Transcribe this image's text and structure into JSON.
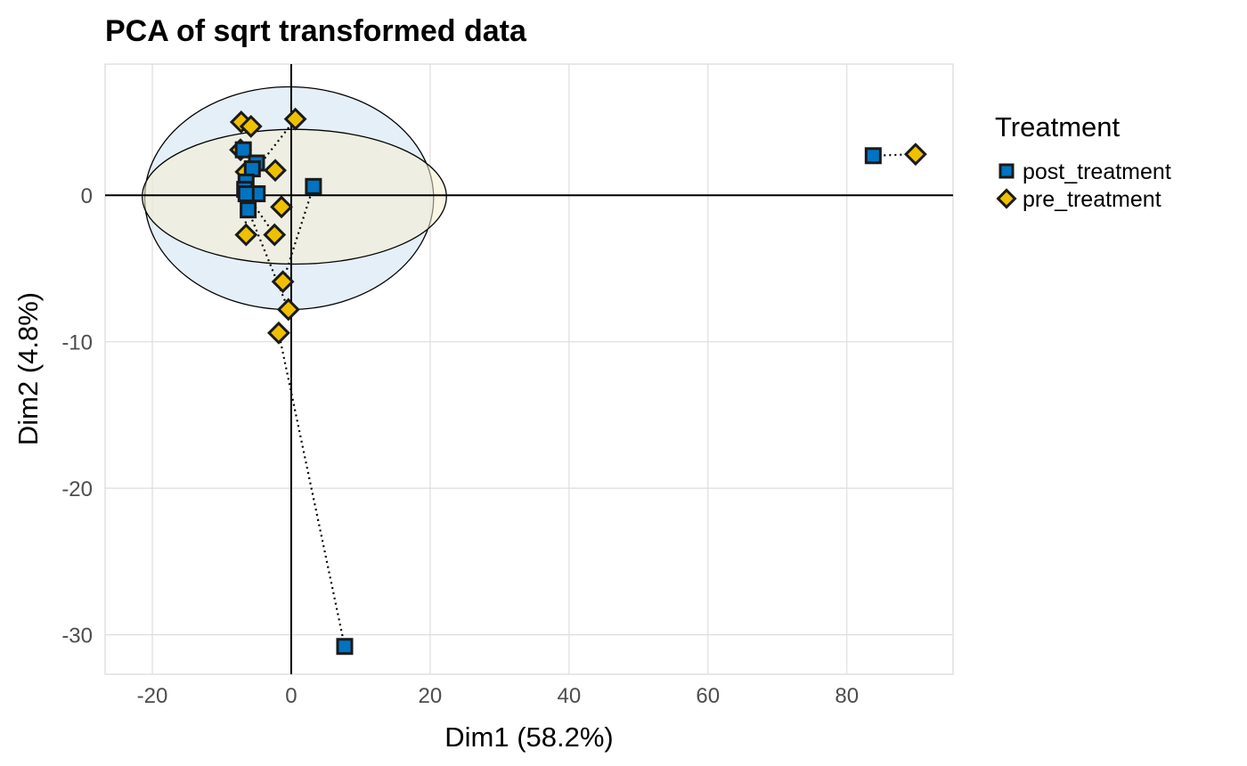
{
  "chart_data": {
    "type": "scatter",
    "title": "PCA of sqrt transformed data",
    "xlabel": "Dim1 (58.2%)",
    "ylabel": "Dim2 (4.8%)",
    "xlim": [
      -26.8,
      95.3
    ],
    "ylim": [
      -32.7,
      8.95
    ],
    "xticks": [
      -20,
      0,
      20,
      40,
      60,
      80
    ],
    "yticks": [
      -30,
      -20,
      -10,
      0
    ],
    "grid": true,
    "legend": {
      "title": "Treatment",
      "placement": "right"
    },
    "series": [
      {
        "name": "post_treatment",
        "color": "#0073C2",
        "marker": "square",
        "points": [
          [
            -6.9,
            3.1
          ],
          [
            -5.0,
            2.2
          ],
          [
            -5.6,
            1.8
          ],
          [
            -6.5,
            0.9
          ],
          [
            -6.7,
            0.4
          ],
          [
            -4.9,
            0.1
          ],
          [
            -6.5,
            0.1
          ],
          [
            -6.2,
            -1.0
          ],
          [
            3.2,
            0.6
          ],
          [
            83.8,
            2.7
          ],
          [
            7.7,
            -30.8
          ]
        ],
        "ellipse": {
          "center": [
            -0.3,
            -0.2
          ],
          "radii": [
            20.8,
            7.6
          ],
          "fill": "#cfe2f3"
        }
      },
      {
        "name": "pre_treatment",
        "color": "#EFC000",
        "marker": "diamond",
        "points": [
          [
            -7.2,
            5.0
          ],
          [
            -5.8,
            4.7
          ],
          [
            0.6,
            5.2
          ],
          [
            -2.3,
            1.7
          ],
          [
            -1.4,
            -0.8
          ],
          [
            -6.5,
            -2.7
          ],
          [
            -2.4,
            -2.7
          ],
          [
            -1.2,
            -5.9
          ],
          [
            -0.4,
            -7.8
          ],
          [
            -1.8,
            -9.4
          ],
          [
            89.9,
            2.8
          ],
          [
            -6.5,
            1.6
          ],
          [
            -7.3,
            3.1
          ]
        ],
        "ellipse": {
          "center": [
            0.45,
            -0.1
          ],
          "radii": [
            21.9,
            4.6
          ],
          "fill": "#f5efcf"
        }
      }
    ],
    "pairs": [
      [
        [
          0.6,
          5.2
        ],
        [
          -6.5,
          0.9
        ]
      ],
      [
        [
          3.2,
          0.6
        ],
        [
          -1.2,
          -5.9
        ]
      ],
      [
        [
          -6.2,
          -1.0
        ],
        [
          -0.4,
          -7.8
        ]
      ],
      [
        [
          -6.5,
          0.1
        ],
        [
          -2.4,
          -2.7
        ]
      ],
      [
        [
          7.7,
          -30.8
        ],
        [
          -1.8,
          -9.4
        ]
      ],
      [
        [
          83.8,
          2.7
        ],
        [
          89.9,
          2.8
        ]
      ],
      [
        [
          -6.7,
          0.4
        ],
        [
          -6.5,
          -2.7
        ]
      ]
    ]
  }
}
